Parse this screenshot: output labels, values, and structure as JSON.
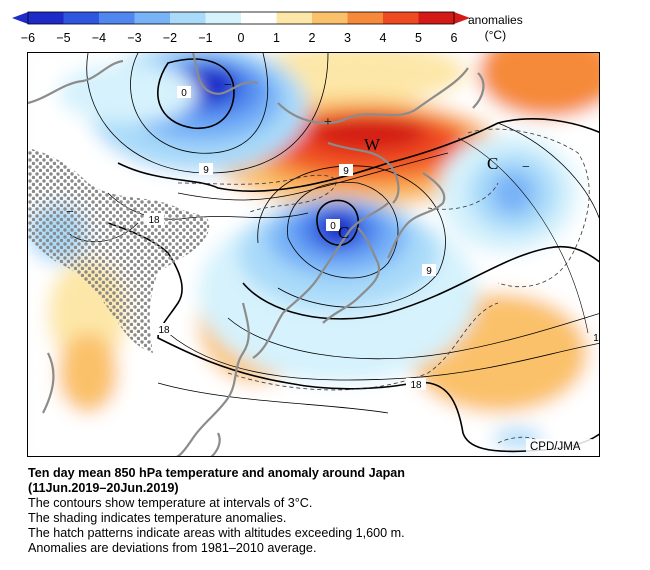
{
  "colorbar": {
    "tick_labels": [
      "−6",
      "−5",
      "−4",
      "−3",
      "−2",
      "−1",
      "0",
      "1",
      "2",
      "3",
      "4",
      "5",
      "6"
    ],
    "units_line1": "anomalies",
    "units_line2": "(°C)",
    "colors": [
      "#1f2bc9",
      "#2f56e0",
      "#4f86ef",
      "#78b2f7",
      "#a9daf9",
      "#d6f2fc",
      "#ffffff",
      "#ffffff",
      "#fde7a8",
      "#fbc16a",
      "#f68a3a",
      "#ef4b22",
      "#d41a17"
    ]
  },
  "map": {
    "contour_labels": [
      "0",
      "9",
      "9",
      "18",
      "0",
      "9",
      "18",
      "18",
      "1"
    ],
    "center_letters": [
      "W",
      "C",
      "C"
    ],
    "credit": "CPD/JMA",
    "land_outline_color": "#8c8c8c",
    "hatch_color": "#8a8a8a"
  },
  "caption": {
    "title_line1": "Ten day mean 850 hPa temperature and anomaly around Japan",
    "title_line2": "(11Jun.2019–20Jun.2019)",
    "line1": "The contours show temperature at intervals of 3°C.",
    "line2": "The shading indicates temperature anomalies.",
    "line3": "The hatch patterns indicate areas with altitudes exceeding 1,600 m.",
    "line4": "Anomalies are deviations from 1981–2010 average."
  }
}
